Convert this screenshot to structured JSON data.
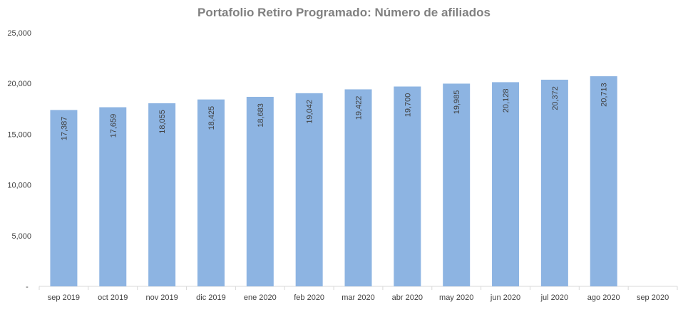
{
  "chart_data": {
    "type": "bar",
    "title": "Portafolio Retiro Programado: Número de afiliados",
    "xlabel": "",
    "ylabel": "",
    "categories": [
      "sep 2019",
      "oct 2019",
      "nov 2019",
      "dic 2019",
      "ene 2020",
      "feb 2020",
      "mar 2020",
      "abr 2020",
      "may 2020",
      "jun 2020",
      "jul 2020",
      "ago 2020",
      "sep 2020"
    ],
    "values": [
      17387,
      17659,
      18055,
      18425,
      18683,
      19042,
      19422,
      19700,
      19985,
      20128,
      20372,
      20713,
      null
    ],
    "data_labels": [
      "17,387",
      "17,659",
      "18,055",
      "18,425",
      "18,683",
      "19,042",
      "19,422",
      "19,700",
      "19,985",
      "20,128",
      "20,372",
      "20,713",
      ""
    ],
    "ylim": [
      0,
      25000
    ],
    "yticks": [
      0,
      5000,
      10000,
      15000,
      20000,
      25000
    ],
    "ytick_labels": [
      "-",
      "5,000",
      "10,000",
      "15,000",
      "20,000",
      "25,000"
    ],
    "grid": false,
    "legend": "none",
    "colors": {
      "bar": "#8DB4E2",
      "title": "#808080",
      "text": "#404040",
      "axis": "#D9D9D9"
    }
  }
}
